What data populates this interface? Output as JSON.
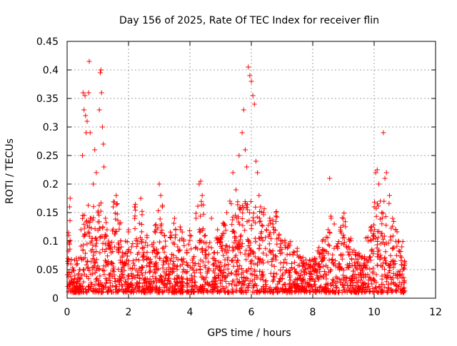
{
  "chart_data": {
    "type": "scatter",
    "title": "Day 156 of 2025, Rate Of TEC Index for receiver flin",
    "xlabel": "GPS time / hours",
    "ylabel": "ROTI / TECUs",
    "xlim": [
      0,
      12
    ],
    "ylim": [
      0,
      0.45
    ],
    "xticks": [
      0,
      2,
      4,
      6,
      8,
      10,
      12
    ],
    "xtick_labels": [
      "0",
      "2",
      "4",
      "6",
      "8",
      "10",
      "12"
    ],
    "yticks": [
      0,
      0.05,
      0.1,
      0.15,
      0.2,
      0.25,
      0.3,
      0.35,
      0.4,
      0.45
    ],
    "ytick_labels": [
      "0",
      "0.05",
      "0.1",
      "0.15",
      "0.2",
      "0.25",
      "0.3",
      "0.35",
      "0.4",
      "0.45"
    ],
    "grid": true,
    "marker": "+",
    "series": [
      {
        "name": "ROTI",
        "color": "#ff0000",
        "x": [
          0.05,
          0.08,
          0.1,
          0.12,
          0.15,
          0.2,
          0.25,
          0.3,
          0.35,
          0.4,
          0.45,
          0.5,
          0.52,
          0.55,
          0.58,
          0.6,
          0.62,
          0.65,
          0.7,
          0.72,
          0.75,
          0.78,
          0.8,
          0.85,
          0.9,
          0.95,
          1.0,
          1.05,
          1.08,
          1.1,
          1.12,
          1.15,
          1.18,
          1.2,
          1.25,
          1.3,
          1.35,
          1.4,
          1.5,
          1.6,
          1.7,
          1.8,
          1.9,
          2.0,
          2.1,
          2.2,
          2.3,
          2.4,
          2.5,
          2.6,
          2.7,
          2.8,
          2.9,
          3.0,
          3.05,
          3.1,
          3.2,
          3.3,
          3.4,
          3.5,
          3.6,
          3.7,
          3.8,
          3.9,
          4.0,
          4.1,
          4.2,
          4.3,
          4.35,
          4.4,
          4.5,
          4.6,
          4.7,
          4.8,
          4.9,
          5.0,
          5.1,
          5.2,
          5.3,
          5.4,
          5.5,
          5.6,
          5.7,
          5.75,
          5.8,
          5.85,
          5.9,
          5.95,
          6.0,
          6.05,
          6.1,
          6.15,
          6.2,
          6.25,
          6.3,
          6.4,
          6.5,
          6.6,
          6.7,
          6.8,
          6.9,
          7.0,
          7.2,
          7.4,
          7.6,
          7.8,
          8.0,
          8.2,
          8.4,
          8.5,
          8.55,
          8.6,
          8.7,
          8.8,
          8.9,
          9.0,
          9.2,
          9.4,
          9.6,
          9.8,
          9.9,
          10.0,
          10.05,
          10.1,
          10.15,
          10.2,
          10.25,
          10.3,
          10.35,
          10.4,
          10.5,
          10.6,
          10.7,
          10.8,
          10.9,
          11.0
        ],
        "y": [
          0.11,
          0.16,
          0.175,
          0.06,
          0.03,
          0.05,
          0.04,
          0.07,
          0.03,
          0.05,
          0.12,
          0.25,
          0.36,
          0.33,
          0.355,
          0.32,
          0.29,
          0.31,
          0.36,
          0.415,
          0.29,
          0.14,
          0.1,
          0.2,
          0.26,
          0.22,
          0.15,
          0.33,
          0.395,
          0.4,
          0.36,
          0.3,
          0.27,
          0.23,
          0.14,
          0.12,
          0.1,
          0.09,
          0.16,
          0.18,
          0.13,
          0.08,
          0.1,
          0.12,
          0.09,
          0.16,
          0.1,
          0.175,
          0.08,
          0.11,
          0.06,
          0.09,
          0.12,
          0.2,
          0.18,
          0.16,
          0.1,
          0.06,
          0.11,
          0.14,
          0.09,
          0.12,
          0.1,
          0.08,
          0.11,
          0.07,
          0.14,
          0.2,
          0.205,
          0.18,
          0.11,
          0.09,
          0.14,
          0.08,
          0.12,
          0.1,
          0.13,
          0.15,
          0.17,
          0.22,
          0.19,
          0.25,
          0.29,
          0.33,
          0.26,
          0.23,
          0.405,
          0.39,
          0.38,
          0.355,
          0.34,
          0.24,
          0.22,
          0.18,
          0.16,
          0.15,
          0.12,
          0.14,
          0.13,
          0.15,
          0.11,
          0.1,
          0.09,
          0.08,
          0.07,
          0.06,
          0.05,
          0.08,
          0.1,
          0.12,
          0.21,
          0.14,
          0.13,
          0.09,
          0.12,
          0.14,
          0.1,
          0.08,
          0.07,
          0.1,
          0.12,
          0.16,
          0.22,
          0.225,
          0.2,
          0.17,
          0.15,
          0.29,
          0.21,
          0.22,
          0.18,
          0.14,
          0.12,
          0.1,
          0.09,
          0.06
        ]
      }
    ]
  }
}
